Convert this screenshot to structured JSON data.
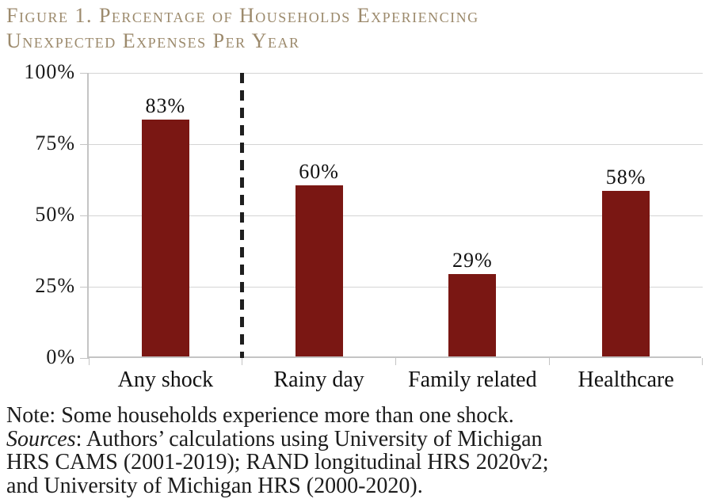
{
  "figure": {
    "title_lines": [
      "Figure 1. Percentage of Households Experiencing",
      "Unexpected Expenses Per Year"
    ]
  },
  "chart_data": {
    "type": "bar",
    "title": "Figure 1. Percentage of Households Experiencing Unexpected Expenses Per Year",
    "categories": [
      "Any shock",
      "Rainy day",
      "Family related",
      "Healthcare"
    ],
    "values": [
      83,
      60,
      29,
      58
    ],
    "value_labels": [
      "83%",
      "60%",
      "29%",
      "58%"
    ],
    "xlabel": "",
    "ylabel": "",
    "ylim": [
      0,
      100
    ],
    "yticks": [
      0,
      25,
      50,
      75,
      100
    ],
    "ytick_labels": [
      "0%",
      "25%",
      "50%",
      "75%",
      "100%"
    ],
    "grid": true,
    "legend": false,
    "bar_color": "#7a1713",
    "separator_after_index": 0,
    "separator_style": "dashed-vertical-black"
  },
  "notes": {
    "note": "Note: Some households experience more than one shock.",
    "sources_label": "Sources",
    "sources_line1_rest": ": Authors’ calculations using University of Michigan",
    "sources_line2": "HRS CAMS (2001-2019); RAND longitudinal HRS 2020v2;",
    "sources_line3": "and University of Michigan HRS (2000-2020)."
  }
}
